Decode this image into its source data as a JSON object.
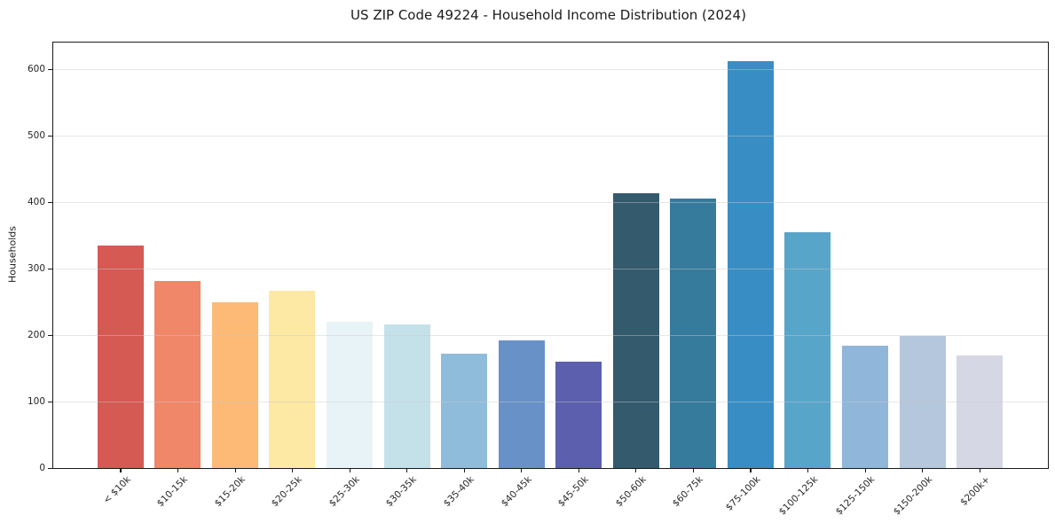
{
  "chart_data": {
    "type": "bar",
    "title": "US ZIP Code 49224 - Household Income Distribution (2024)",
    "ylabel": "Households",
    "categories": [
      "< $10k",
      "$10-15k",
      "$15-20k",
      "$20-25k",
      "$25-30k",
      "$30-35k",
      "$35-40k",
      "$40-45k",
      "$45-50k",
      "$50-60k",
      "$60-75k",
      "$75-100k",
      "$100-125k",
      "$125-150k",
      "$150-200k",
      "$200k+"
    ],
    "values": [
      335,
      281,
      250,
      267,
      220,
      216,
      172,
      192,
      160,
      413,
      406,
      612,
      355,
      184,
      199,
      170
    ],
    "bar_colors": [
      "#d65a54",
      "#f08768",
      "#fcba76",
      "#fde8a4",
      "#e8f3f7",
      "#c4e1ea",
      "#8fbcdb",
      "#6891c8",
      "#5c5fad",
      "#345a6d",
      "#367a9c",
      "#388ec4",
      "#58a5ca",
      "#90b6da",
      "#b5c7dd",
      "#d5d7e5"
    ],
    "ylim": [
      0,
      640
    ],
    "yticks": [
      0,
      100,
      200,
      300,
      400,
      500,
      600
    ],
    "grid": "horizontal",
    "legend": "none",
    "background": "#ffffff",
    "axis_color": "#1a1a1a"
  }
}
